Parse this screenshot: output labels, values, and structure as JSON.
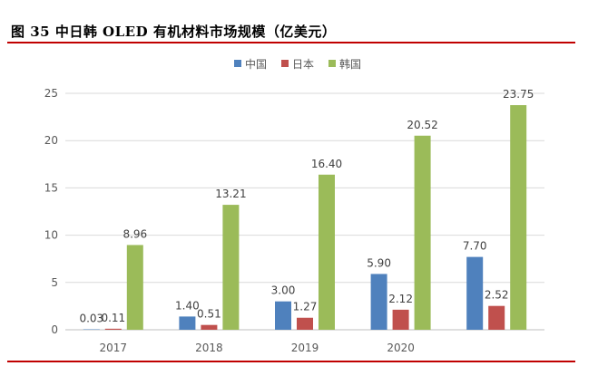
{
  "figure": {
    "title": "图 35 中日韩 OLED 有机材料市场规模（亿美元）"
  },
  "colors": {
    "china": "#4f81bd",
    "japan": "#c0504d",
    "korea": "#9bbb59",
    "rule": "#c00000"
  },
  "chart_data": {
    "type": "bar",
    "title": "",
    "xlabel": "",
    "ylabel": "",
    "categories": [
      "2017",
      "2018",
      "2019",
      "2020",
      ""
    ],
    "ylim": [
      0,
      25
    ],
    "yticks": [
      "0",
      "5",
      "10",
      "15",
      "20",
      "25"
    ],
    "grid": true,
    "legend_position": "top",
    "series": [
      {
        "name": "中国",
        "values": [
          0.03,
          1.4,
          3.0,
          5.9,
          7.7
        ],
        "labels": [
          "0.03",
          "1.40",
          "3.00",
          "5.90",
          "7.70"
        ]
      },
      {
        "name": "日本",
        "values": [
          0.11,
          0.51,
          1.27,
          2.12,
          2.52
        ],
        "labels": [
          "0.11",
          "0.51",
          "1.27",
          "2.12",
          "2.52"
        ]
      },
      {
        "name": "韩国",
        "values": [
          8.96,
          13.21,
          16.4,
          20.52,
          23.75
        ],
        "labels": [
          "8.96",
          "13.21",
          "16.40",
          "20.52",
          "23.75"
        ]
      }
    ]
  }
}
